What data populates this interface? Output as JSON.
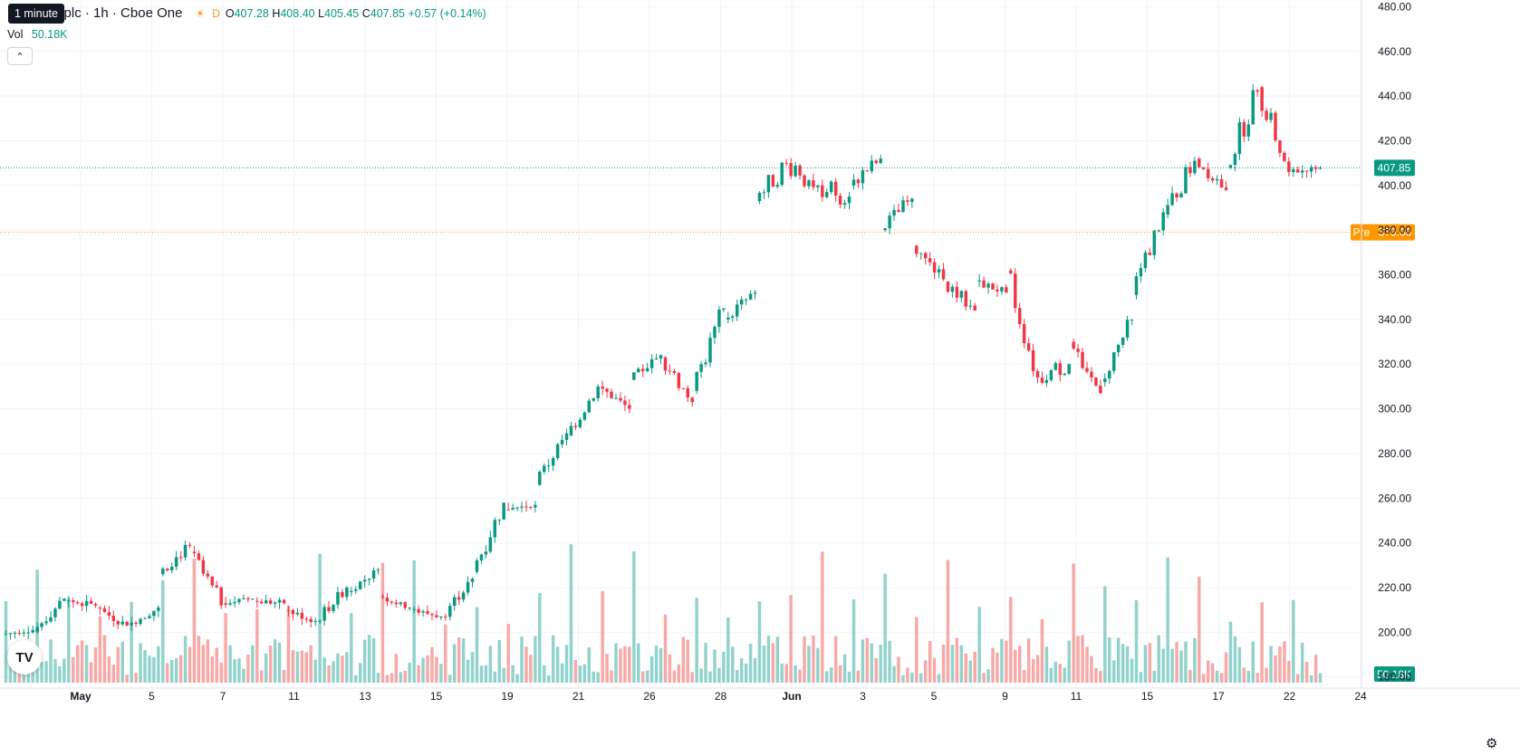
{
  "header": {
    "title": "Holdings plc · 1h · Cboe One",
    "tooltip": "1 minute",
    "day_badge": "D",
    "open_label": "O",
    "open": "407.28",
    "high_label": "H",
    "high": "408.40",
    "low_label": "L",
    "low": "405.45",
    "close_label": "C",
    "close": "407.85",
    "change": "+0.57 (+0.14%)"
  },
  "volume_legend": {
    "label": "Vol",
    "value": "50.18K"
  },
  "price_axis": {
    "last_price_label": "407.85",
    "pre_label": "Pre",
    "pre_price": "379.00",
    "volume_label": "50.18K"
  },
  "colors": {
    "up": "#089981",
    "down": "#f23645",
    "up_vol": "#92d2cc",
    "down_vol": "#f7a9a7",
    "pre": "#ff9800",
    "grid": "#f0f3fa"
  },
  "chart_data": {
    "type": "candlestick",
    "y_ticks": [
      180,
      200,
      220,
      240,
      260,
      280,
      300,
      320,
      340,
      360,
      380,
      400,
      420,
      440,
      460,
      480
    ],
    "ylim": [
      175,
      483
    ],
    "x_ticks": [
      "May",
      "5",
      "7",
      "11",
      "13",
      "15",
      "19",
      "21",
      "26",
      "28",
      "Jun",
      "3",
      "5",
      "9",
      "11",
      "15",
      "17",
      "22",
      "24"
    ],
    "last_price": 407.85,
    "pre_market_price": 379.0,
    "segments": [
      {
        "date": "Apr 30",
        "open": 199,
        "close": 201,
        "low": 196,
        "high": 203
      },
      {
        "date": "May 1",
        "open": 200,
        "close": 215,
        "low": 198,
        "high": 216
      },
      {
        "date": "May 2",
        "open": 214,
        "close": 212,
        "low": 206,
        "high": 218
      },
      {
        "date": "May 5",
        "open": 211,
        "close": 203,
        "low": 200,
        "high": 215
      },
      {
        "date": "May 6",
        "open": 203,
        "close": 211,
        "low": 200,
        "high": 214
      },
      {
        "date": "May 7",
        "open": 226,
        "close": 239,
        "low": 222,
        "high": 241
      },
      {
        "date": "May 8",
        "open": 236,
        "close": 212,
        "low": 210,
        "high": 248
      },
      {
        "date": "May 9",
        "open": 213,
        "close": 215,
        "low": 210,
        "high": 218
      },
      {
        "date": "May 12",
        "open": 214,
        "close": 213,
        "low": 205,
        "high": 217
      },
      {
        "date": "May 13",
        "open": 210,
        "close": 205,
        "low": 201,
        "high": 213
      },
      {
        "date": "May 14",
        "open": 205,
        "close": 220,
        "low": 203,
        "high": 222
      },
      {
        "date": "May 15",
        "open": 218,
        "close": 228,
        "low": 216,
        "high": 229
      },
      {
        "date": "May 16",
        "open": 216,
        "close": 211,
        "low": 209,
        "high": 218
      },
      {
        "date": "May 19",
        "open": 210,
        "close": 207,
        "low": 202,
        "high": 212
      },
      {
        "date": "May 20",
        "open": 207,
        "close": 224,
        "low": 205,
        "high": 225
      },
      {
        "date": "May 21",
        "open": 227,
        "close": 258,
        "low": 226,
        "high": 260
      },
      {
        "date": "May 22",
        "open": 255,
        "close": 257,
        "low": 252,
        "high": 259
      },
      {
        "date": "May 23",
        "open": 266,
        "close": 289,
        "low": 265,
        "high": 291
      },
      {
        "date": "May 27",
        "open": 288,
        "close": 310,
        "low": 286,
        "high": 312
      },
      {
        "date": "May 28",
        "open": 310,
        "close": 300,
        "low": 298,
        "high": 314
      },
      {
        "date": "May 29",
        "open": 313,
        "close": 324,
        "low": 311,
        "high": 326
      },
      {
        "date": "May 30",
        "open": 323,
        "close": 303,
        "low": 301,
        "high": 325
      },
      {
        "date": "Jun 2",
        "open": 308,
        "close": 345,
        "low": 306,
        "high": 346
      },
      {
        "date": "Jun 3",
        "open": 340,
        "close": 352,
        "low": 334,
        "high": 357
      },
      {
        "date": "Jun 4",
        "open": 393,
        "close": 410,
        "low": 381,
        "high": 422
      },
      {
        "date": "Jun 5",
        "open": 410,
        "close": 400,
        "low": 389,
        "high": 428
      },
      {
        "date": "Jun 6",
        "open": 400,
        "close": 395,
        "low": 374,
        "high": 415
      },
      {
        "date": "Jun 9",
        "open": 400,
        "close": 412,
        "low": 391,
        "high": 418
      },
      {
        "date": "Jun 10",
        "open": 380,
        "close": 394,
        "low": 367,
        "high": 398
      },
      {
        "date": "Jun 11",
        "open": 373,
        "close": 358,
        "low": 355,
        "high": 376
      },
      {
        "date": "Jun 12",
        "open": 357,
        "close": 344,
        "low": 338,
        "high": 366
      },
      {
        "date": "Jun 13",
        "open": 357,
        "close": 352,
        "low": 347,
        "high": 362
      },
      {
        "date": "Jun 16",
        "open": 362,
        "close": 314,
        "low": 310,
        "high": 363
      },
      {
        "date": "Jun 17",
        "open": 314,
        "close": 320,
        "low": 298,
        "high": 333
      },
      {
        "date": "Jun 18",
        "open": 330,
        "close": 307,
        "low": 304,
        "high": 334
      },
      {
        "date": "Jun 19",
        "open": 312,
        "close": 340,
        "low": 310,
        "high": 343
      },
      {
        "date": "Jun 20",
        "open": 351,
        "close": 388,
        "low": 349,
        "high": 390
      },
      {
        "date": "Jun 23",
        "open": 387,
        "close": 411,
        "low": 385,
        "high": 429
      },
      {
        "date": "Jun 24",
        "open": 412,
        "close": 398,
        "low": 396,
        "high": 420
      },
      {
        "date": "Jun 25",
        "open": 408,
        "close": 442,
        "low": 406,
        "high": 453
      },
      {
        "date": "Jun 26",
        "open": 444,
        "close": 406,
        "low": 402,
        "high": 446
      },
      {
        "date": "Jun 27",
        "open": 406,
        "close": 407.85,
        "low": 402,
        "high": 410
      }
    ]
  }
}
